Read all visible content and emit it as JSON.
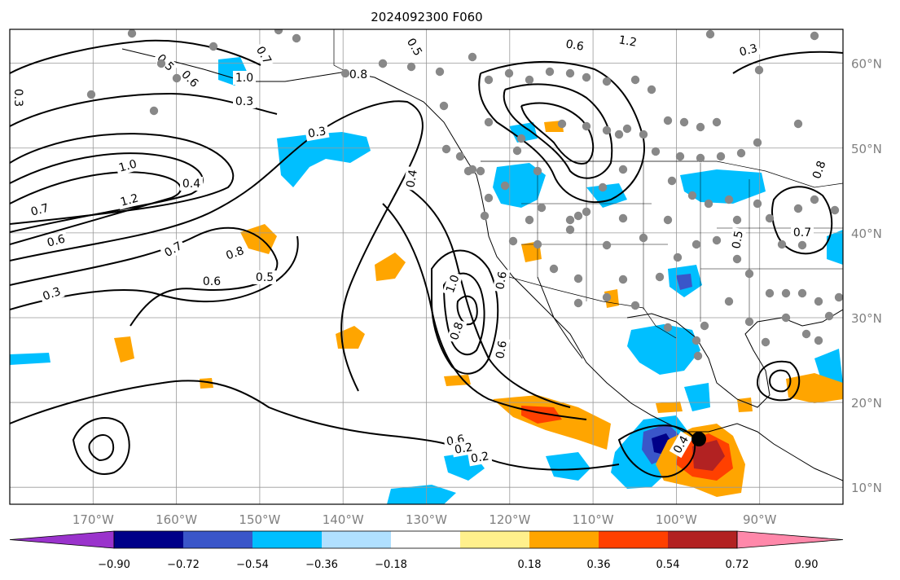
{
  "title": "2024092300 F060",
  "map": {
    "lon_range": [
      -180,
      -80
    ],
    "lat_range": [
      8,
      64
    ],
    "lon_ticks": [
      "170°W",
      "160°W",
      "150°W",
      "140°W",
      "130°W",
      "120°W",
      "110°W",
      "100°W",
      "90°W"
    ],
    "lat_ticks": [
      "60°N",
      "50°N",
      "40°N",
      "30°N",
      "20°N",
      "10°N"
    ],
    "grid": true,
    "contour_labels": [
      "0.3",
      "0.5",
      "0.6",
      "0.7",
      "0.8",
      "1.0",
      "1.2",
      "0.4",
      "0.3",
      "0.5",
      "0.7",
      "0.6",
      "0.8",
      "1.0",
      "1.2",
      "0.6",
      "0.3",
      "0.4",
      "0.7",
      "0.6",
      "0.5",
      "0.3",
      "0.6",
      "1.0",
      "0.8",
      "0.6",
      "0.2",
      "0.2",
      "0.4",
      "0.7",
      "0.8",
      "0.3",
      "0.5",
      "0.6"
    ],
    "colors": {
      "land_outline": "#000000",
      "grid": "#999999",
      "station_dot": "#888888",
      "storm_dot": "#000000"
    }
  },
  "colorbar": {
    "labels": [
      "−0.90",
      "−0.72",
      "−0.54",
      "−0.36",
      "−0.18",
      "0.18",
      "0.36",
      "0.54",
      "0.72",
      "0.90"
    ],
    "colors": [
      "#9a33cc",
      "#000088",
      "#3a56c9",
      "#00bfff",
      "#b0e0ff",
      "#ffffff",
      "#fff08c",
      "#ffa500",
      "#ff4000",
      "#b22222",
      "#ff88aa"
    ]
  }
}
